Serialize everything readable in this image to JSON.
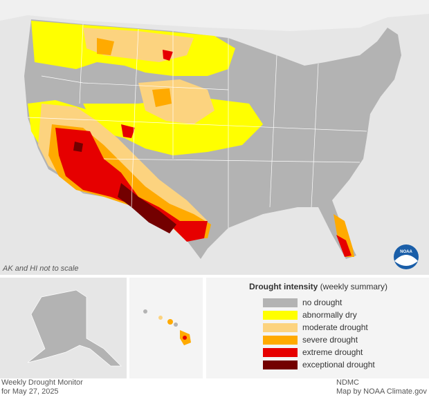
{
  "map": {
    "note": "AK and HI not to scale",
    "logo": "NOAA"
  },
  "legend": {
    "title": "Drought intensity",
    "subtitle": "(weekly summary)",
    "items": [
      {
        "label": "no drought",
        "color": "#b3b3b3"
      },
      {
        "label": "abnormally dry",
        "color": "#ffff00"
      },
      {
        "label": "moderate drought",
        "color": "#fcd37f"
      },
      {
        "label": "severe drought",
        "color": "#ffaa00"
      },
      {
        "label": "extreme drought",
        "color": "#e60000"
      },
      {
        "label": "exceptional drought",
        "color": "#730000"
      }
    ]
  },
  "footer": {
    "left": [
      "Weekly Drought Monitor",
      "for May 27, 2025"
    ],
    "right": [
      "NDMC",
      "Map by NOAA Climate.gov"
    ]
  }
}
